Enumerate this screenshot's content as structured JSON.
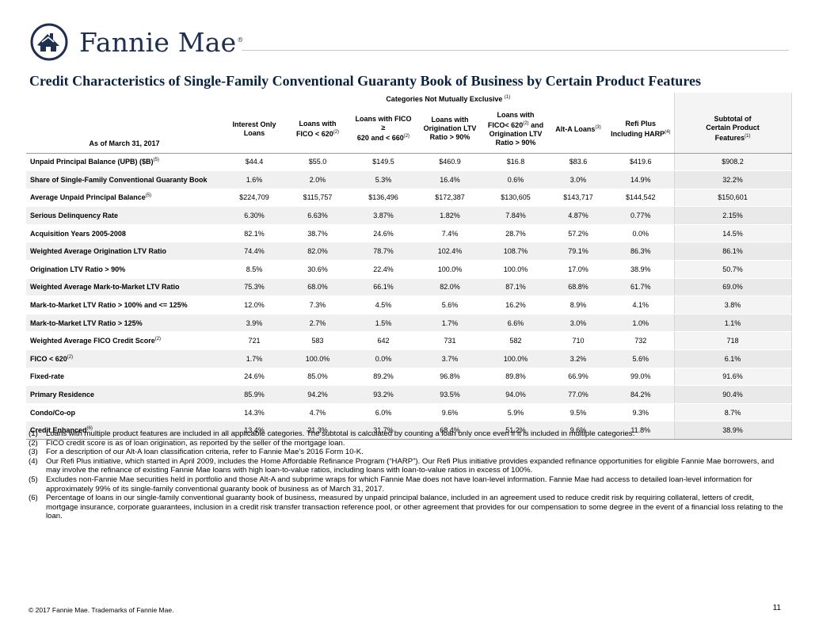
{
  "brand": {
    "name": "Fannie Mae",
    "reg": "®",
    "logo_color": "#1f2f4f"
  },
  "title": "Credit Characteristics of Single-Family Conventional Guaranty Book of Business by Certain Product Features",
  "table": {
    "group_header": "Categories Not Mutually Exclusive",
    "group_header_note": "(1)",
    "as_of": "As of March 31, 2017",
    "columns": [
      {
        "lines": [
          "Interest Only",
          "Loans"
        ],
        "note": ""
      },
      {
        "lines": [
          "Loans with",
          "FICO < 620"
        ],
        "note": "(2)"
      },
      {
        "lines": [
          "Loans with FICO ≥",
          "620 and  < 660"
        ],
        "note": "(2)"
      },
      {
        "lines": [
          "Loans with",
          "Origination LTV",
          "Ratio > 90%"
        ],
        "note": ""
      },
      {
        "lines": [
          "Loans with FICO",
          "< 620",
          "and",
          "Origination LTV",
          "Ratio > 90%"
        ],
        "note": "(2)"
      },
      {
        "lines": [
          "Alt-A Loans"
        ],
        "note": "(3)"
      },
      {
        "lines": [
          "Refi Plus",
          "Including HARP"
        ],
        "note": "(4)"
      },
      {
        "lines": [
          "Subtotal of",
          "Certain Product",
          "Features"
        ],
        "note": "(1)"
      }
    ],
    "rows": [
      {
        "label": "Unpaid Principal Balance (UPB) ($B)",
        "note": "(5)",
        "values": [
          "$44.4",
          "$55.0",
          "$149.5",
          "$460.9",
          "$16.8",
          "$83.6",
          "$419.6",
          "$908.2"
        ]
      },
      {
        "label": "Share of Single-Family Conventional Guaranty Book",
        "note": "",
        "values": [
          "1.6%",
          "2.0%",
          "5.3%",
          "16.4%",
          "0.6%",
          "3.0%",
          "14.9%",
          "32.2%"
        ]
      },
      {
        "label": "Average Unpaid Principal Balance",
        "note": "(5)",
        "values": [
          "$224,709",
          "$115,757",
          "$136,496",
          "$172,387",
          "$130,605",
          "$143,717",
          "$144,542",
          "$150,601"
        ]
      },
      {
        "label": "Serious Delinquency Rate",
        "note": "",
        "values": [
          "6.30%",
          "6.63%",
          "3.87%",
          "1.82%",
          "7.84%",
          "4.87%",
          "0.77%",
          "2.15%"
        ]
      },
      {
        "label": "Acquisition Years 2005-2008",
        "note": "",
        "values": [
          "82.1%",
          "38.7%",
          "24.6%",
          "7.4%",
          "28.7%",
          "57.2%",
          "0.0%",
          "14.5%"
        ]
      },
      {
        "label": "Weighted Average Origination LTV Ratio",
        "note": "",
        "values": [
          "74.4%",
          "82.0%",
          "78.7%",
          "102.4%",
          "108.7%",
          "79.1%",
          "86.3%",
          "86.1%"
        ]
      },
      {
        "label": "Origination LTV Ratio > 90%",
        "note": "",
        "values": [
          "8.5%",
          "30.6%",
          "22.4%",
          "100.0%",
          "100.0%",
          "17.0%",
          "38.9%",
          "50.7%"
        ]
      },
      {
        "label": "Weighted Average Mark-to-Market LTV Ratio",
        "note": "",
        "values": [
          "75.3%",
          "68.0%",
          "66.1%",
          "82.0%",
          "87.1%",
          "68.8%",
          "61.7%",
          "69.0%"
        ]
      },
      {
        "label": "Mark-to-Market LTV Ratio > 100% and <= 125%",
        "note": "",
        "values": [
          "12.0%",
          "7.3%",
          "4.5%",
          "5.6%",
          "16.2%",
          "8.9%",
          "4.1%",
          "3.8%"
        ]
      },
      {
        "label": "Mark-to-Market LTV Ratio > 125%",
        "note": "",
        "values": [
          "3.9%",
          "2.7%",
          "1.5%",
          "1.7%",
          "6.6%",
          "3.0%",
          "1.0%",
          "1.1%"
        ]
      },
      {
        "label": "Weighted Average FICO Credit Score",
        "note": "(2)",
        "values": [
          "721",
          "583",
          "642",
          "731",
          "582",
          "710",
          "732",
          "718"
        ]
      },
      {
        "label": "FICO < 620",
        "note": "(2)",
        "values": [
          "1.7%",
          "100.0%",
          "0.0%",
          "3.7%",
          "100.0%",
          "3.2%",
          "5.6%",
          "6.1%"
        ]
      },
      {
        "label": "Fixed-rate",
        "note": "",
        "values": [
          "24.6%",
          "85.0%",
          "89.2%",
          "96.8%",
          "89.8%",
          "66.9%",
          "99.0%",
          "91.6%"
        ]
      },
      {
        "label": "Primary Residence",
        "note": "",
        "values": [
          "85.9%",
          "94.2%",
          "93.2%",
          "93.5%",
          "94.0%",
          "77.0%",
          "84.2%",
          "90.4%"
        ]
      },
      {
        "label": "Condo/Co-op",
        "note": "",
        "values": [
          "14.3%",
          "4.7%",
          "6.0%",
          "9.6%",
          "5.9%",
          "9.5%",
          "9.3%",
          "8.7%"
        ]
      },
      {
        "label": "Credit Enhanced",
        "note": "(6)",
        "values": [
          "13.4%",
          "21.3%",
          "31.7%",
          "68.4%",
          "51.2%",
          "9.6%",
          "11.8%",
          "38.9%"
        ]
      }
    ]
  },
  "footnotes": [
    {
      "num": "(1)",
      "text": "Loans with multiple product features are included in all applicable categories. The subtotal is calculated by counting a loan only once even if it is included in multiple categories."
    },
    {
      "num": "(2)",
      "text": "FICO credit score is as of loan origination, as reported by the seller of the mortgage loan."
    },
    {
      "num": "(3)",
      "text": "For a description of our Alt-A loan classification criteria, refer to Fannie Mae’s 2016 Form 10-K."
    },
    {
      "num": "(4)",
      "text": "Our Refi Plus initiative, which started in April 2009, includes the Home Affordable Refinance Program (“HARP”). Our Refi Plus initiative provides expanded refinance opportunities for eligible Fannie Mae borrowers, and may involve the refinance of existing Fannie Mae loans with high loan-to-value ratios, including loans with loan-to-value ratios in excess of 100%."
    },
    {
      "num": "(5)",
      "text": "Excludes non-Fannie Mae securities held in portfolio and those Alt-A and subprime wraps for which Fannie Mae does not have loan-level information. Fannie Mae had access to detailed loan-level information for approximately 99% of its single-family conventional guaranty book of business as of March 31, 2017."
    },
    {
      "num": "(6)",
      "text": "Percentage of loans in our single-family conventional guaranty book of business, measured by unpaid principal balance, included in an agreement used to reduce credit risk by requiring collateral, letters of credit, mortgage insurance, corporate guarantees, inclusion in a credit risk transfer transaction reference pool, or other agreement that provides for our compensation to some degree in the event of a financial loss relating to the loan."
    }
  ],
  "footer": {
    "copyright": "© 2017 Fannie Mae. Trademarks of Fannie Mae.",
    "page_number": "11"
  }
}
